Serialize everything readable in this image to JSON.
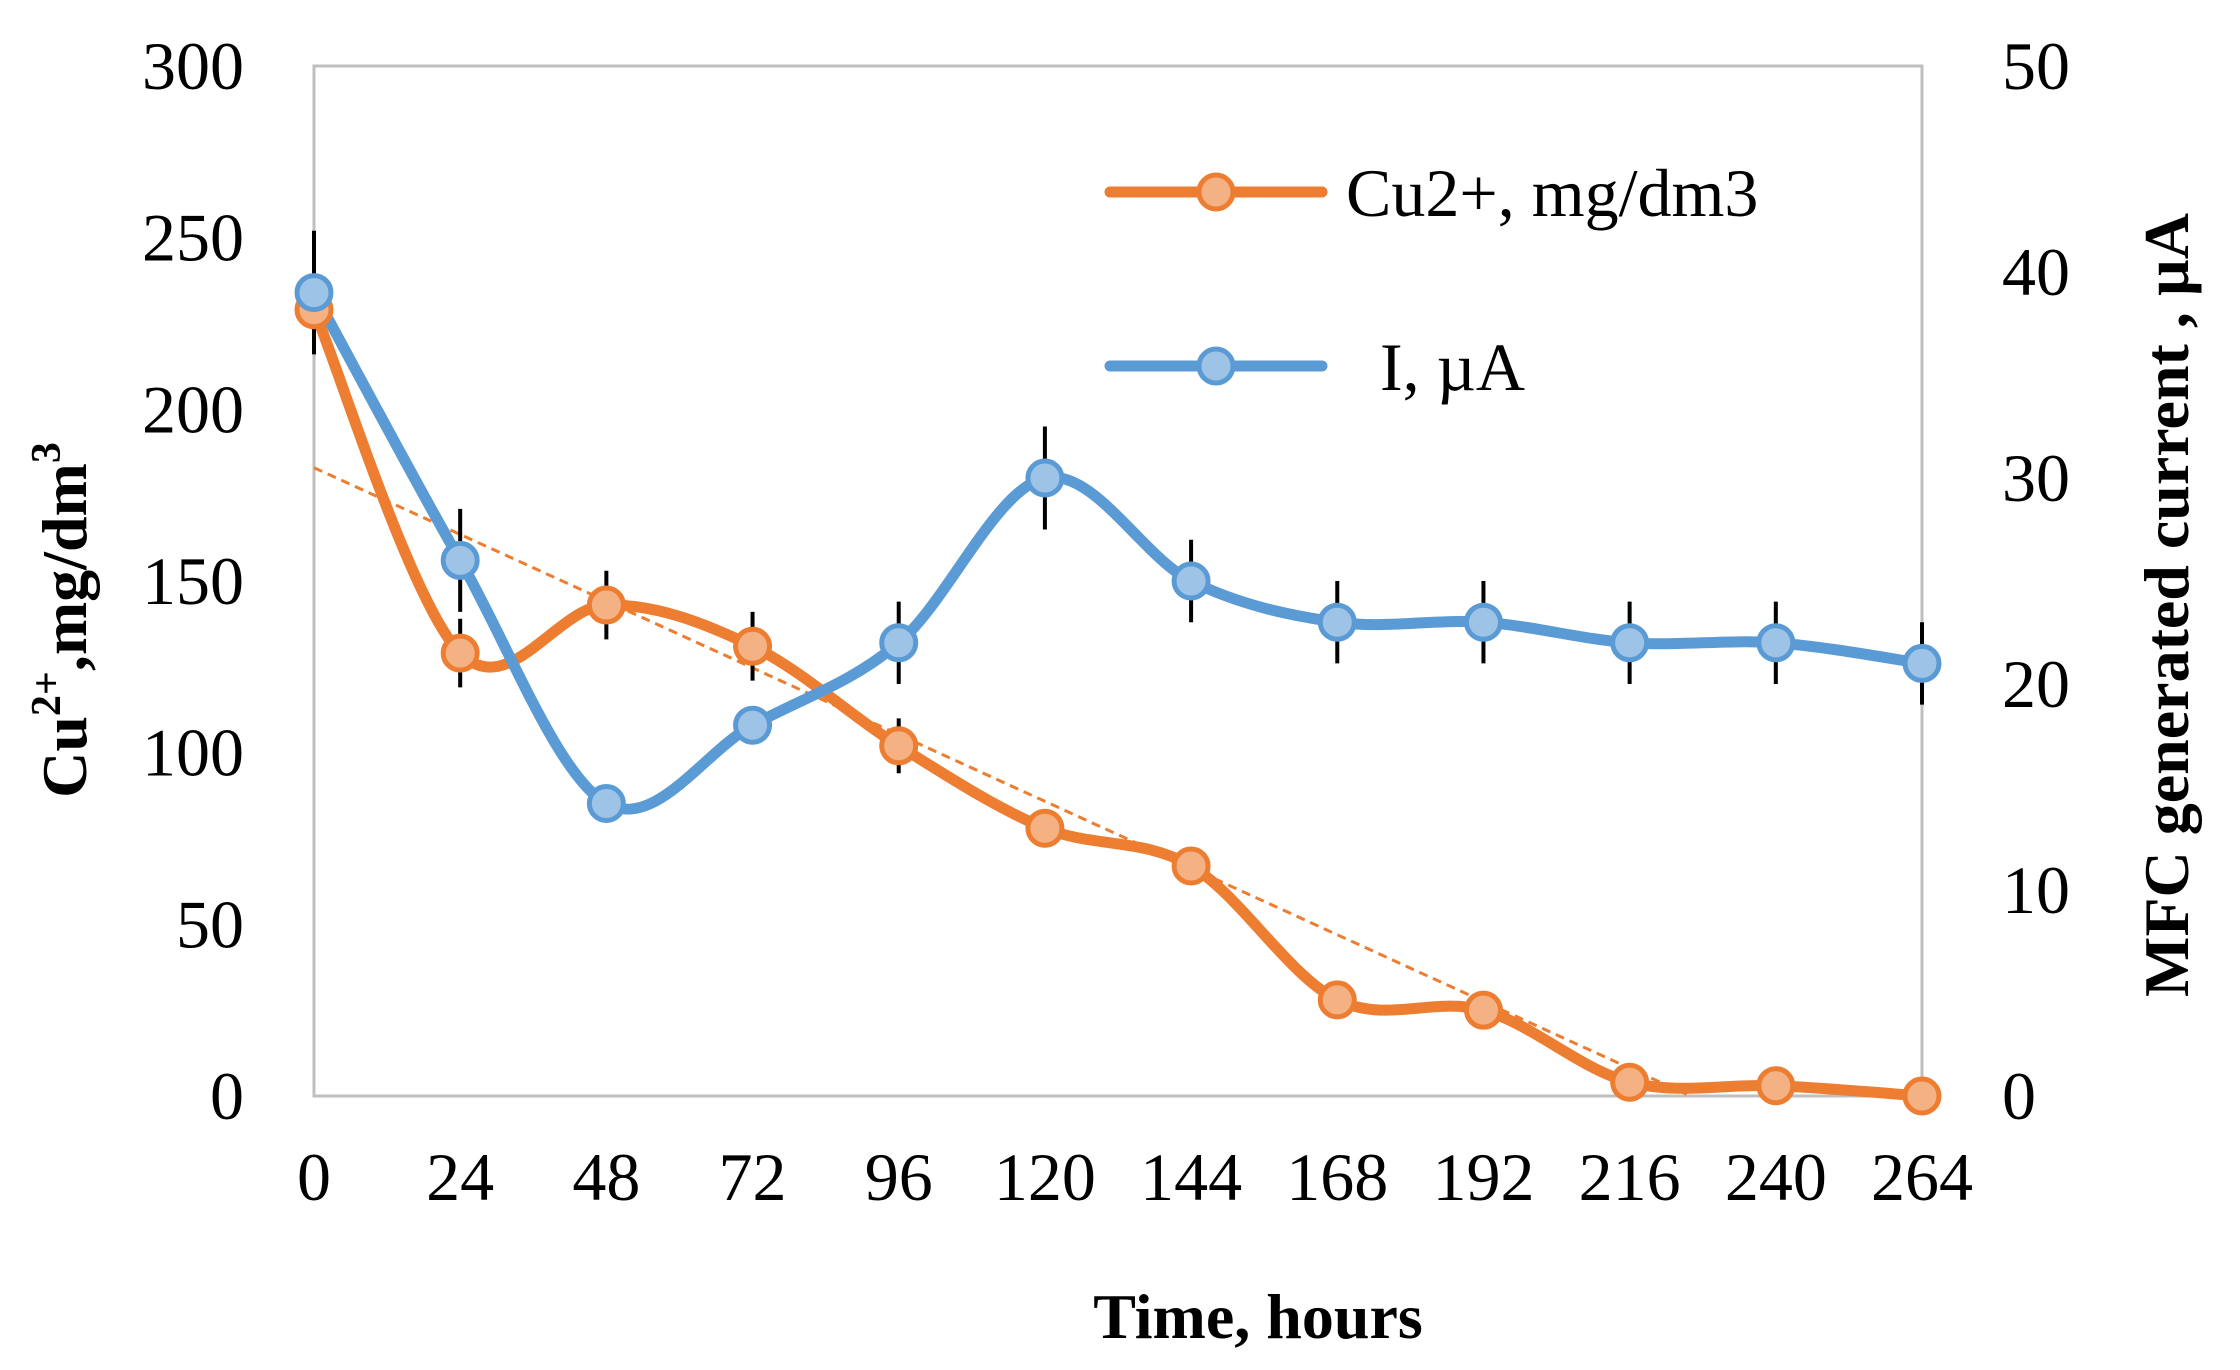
{
  "chart_data": {
    "type": "line",
    "x": [
      0,
      24,
      48,
      72,
      96,
      120,
      144,
      168,
      192,
      216,
      240,
      264
    ],
    "xlabel": "Time, hours",
    "ylabel_main": "Cu",
    "ylabel_sup": "2+",
    "ylabel_mid": ",mg/dm",
    "ylabel_sup2": "3",
    "y2label": "MFC generated current , µA",
    "ylim": [
      0,
      300
    ],
    "y2lim": [
      0,
      50
    ],
    "y_ticks": [
      "0",
      "50",
      "100",
      "150",
      "200",
      "250",
      "300"
    ],
    "y2_ticks": [
      "0",
      "10",
      "20",
      "30",
      "40",
      "50"
    ],
    "x_ticks": [
      "0",
      "24",
      "48",
      "72",
      "96",
      "120",
      "144",
      "168",
      "192",
      "216",
      "240",
      "264"
    ],
    "series": [
      {
        "name": "Cu2+, mg/dm3",
        "axis": "left",
        "color": "#ED7D31",
        "values": [
          229,
          129,
          143,
          131,
          102,
          78,
          67,
          28,
          25,
          4,
          3,
          0
        ],
        "error": [
          0,
          10,
          10,
          10,
          8,
          0,
          0,
          0,
          0,
          0,
          0,
          0
        ]
      },
      {
        "name": "I, µA",
        "axis": "right",
        "color": "#5B9BD5",
        "values": [
          39,
          26,
          14.2,
          18,
          22,
          30,
          25,
          23,
          23,
          22,
          22,
          21
        ],
        "error": [
          3,
          2.5,
          0,
          0,
          2,
          2.5,
          2,
          2,
          2,
          2,
          2,
          2
        ]
      }
    ],
    "trendline": {
      "series": "Cu2+, mg/dm3",
      "style": "dashed",
      "color": "#ED7D31",
      "from": [
        0,
        183
      ],
      "to": [
        226,
        0
      ]
    }
  }
}
